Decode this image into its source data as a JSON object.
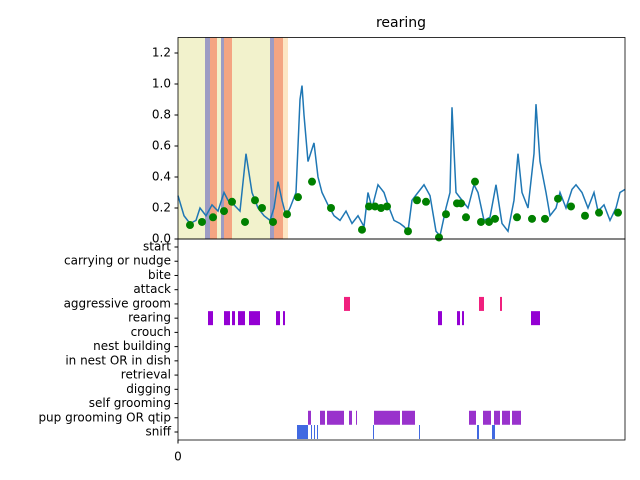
{
  "chart_data": [
    {
      "type": "line",
      "title": "rearing",
      "xlim": [
        0,
        447
      ],
      "ylim": [
        0,
        1.3
      ],
      "yticks": [
        {
          "value": 0,
          "label": "0.0"
        },
        {
          "value": 0.2,
          "label": "0.2"
        },
        {
          "value": 0.4,
          "label": "0.4"
        },
        {
          "value": 0.6,
          "label": "0.6"
        },
        {
          "value": 0.8,
          "label": "0.8"
        },
        {
          "value": 1.0,
          "label": "1.0"
        },
        {
          "value": 1.2,
          "label": "1.2"
        }
      ],
      "spans": [
        {
          "x": [
            0,
            27
          ],
          "color": "#f2f2cc"
        },
        {
          "x": [
            27,
            32
          ],
          "color": "#9d9cc4"
        },
        {
          "x": [
            32,
            39
          ],
          "color": "#f4a582"
        },
        {
          "x": [
            39,
            43
          ],
          "color": "#f2f2cc"
        },
        {
          "x": [
            43,
            46
          ],
          "color": "#9d9cc4"
        },
        {
          "x": [
            46,
            54
          ],
          "color": "#f4a582"
        },
        {
          "x": [
            54,
            92
          ],
          "color": "#f2f2cc"
        },
        {
          "x": [
            92,
            96
          ],
          "color": "#9d9cc4"
        },
        {
          "x": [
            96,
            105
          ],
          "color": "#f4a582"
        },
        {
          "x": [
            105,
            110
          ],
          "color": "#fde6c4"
        }
      ],
      "series": [
        {
          "type": "line",
          "color": "#1f77b4",
          "x": [
            0,
            6,
            12,
            18,
            22,
            28,
            34,
            40,
            46,
            50,
            56,
            62,
            68,
            74,
            80,
            86,
            92,
            96,
            100,
            104,
            108,
            112,
            118,
            122,
            124,
            126,
            130,
            136,
            140,
            144,
            150,
            156,
            162,
            168,
            174,
            180,
            186,
            190,
            194,
            200,
            206,
            210,
            216,
            222,
            226,
            230,
            234,
            240,
            246,
            252,
            258,
            262,
            268,
            272,
            274,
            278,
            284,
            290,
            296,
            300,
            306,
            312,
            318,
            324,
            330,
            336,
            340,
            344,
            350,
            356,
            358,
            362,
            368,
            372,
            378,
            382,
            388,
            394,
            398,
            404,
            410,
            416,
            420,
            426,
            432,
            438,
            442,
            447
          ],
          "values": [
            0.28,
            0.15,
            0.1,
            0.12,
            0.2,
            0.15,
            0.22,
            0.18,
            0.3,
            0.25,
            0.22,
            0.18,
            0.55,
            0.3,
            0.2,
            0.15,
            0.12,
            0.2,
            0.37,
            0.25,
            0.15,
            0.2,
            0.3,
            0.9,
            0.99,
            0.8,
            0.5,
            0.62,
            0.4,
            0.3,
            0.22,
            0.15,
            0.12,
            0.18,
            0.1,
            0.15,
            0.08,
            0.3,
            0.2,
            0.35,
            0.3,
            0.22,
            0.12,
            0.1,
            0.08,
            0.05,
            0.25,
            0.3,
            0.35,
            0.28,
            0.05,
            0.02,
            0.2,
            0.3,
            0.85,
            0.3,
            0.25,
            0.2,
            0.35,
            0.3,
            0.12,
            0.14,
            0.35,
            0.1,
            0.05,
            0.25,
            0.55,
            0.3,
            0.2,
            0.55,
            0.87,
            0.5,
            0.3,
            0.15,
            0.2,
            0.3,
            0.2,
            0.32,
            0.35,
            0.3,
            0.2,
            0.3,
            0.18,
            0.22,
            0.12,
            0.2,
            0.3,
            0.32
          ]
        },
        {
          "type": "scatter",
          "color": "#008000",
          "x": [
            12,
            24,
            35,
            46,
            54,
            67,
            77,
            84,
            95,
            109,
            120,
            134,
            153,
            184,
            191,
            197,
            203,
            209,
            230,
            239,
            248,
            261,
            268,
            279,
            283,
            288,
            297,
            303,
            311,
            317,
            339,
            354,
            367,
            380,
            393,
            407,
            421,
            440
          ],
          "values": [
            0.09,
            0.11,
            0.14,
            0.18,
            0.24,
            0.11,
            0.25,
            0.2,
            0.11,
            0.16,
            0.27,
            0.37,
            0.2,
            0.06,
            0.21,
            0.21,
            0.2,
            0.21,
            0.05,
            0.25,
            0.24,
            0.01,
            0.16,
            0.23,
            0.23,
            0.14,
            0.37,
            0.11,
            0.11,
            0.13,
            0.14,
            0.13,
            0.13,
            0.26,
            0.21,
            0.15,
            0.17,
            0.17
          ]
        }
      ]
    },
    {
      "type": "ethogram",
      "xlim": [
        0,
        447
      ],
      "xticks": [
        0
      ],
      "rows": [
        {
          "name": "start",
          "intervals": []
        },
        {
          "name": "carrying or nudge",
          "intervals": []
        },
        {
          "name": "bite",
          "intervals": []
        },
        {
          "name": "attack",
          "intervals": []
        },
        {
          "name": "aggressive groom",
          "color": "#f0207e",
          "intervals": [
            [
              166,
              172
            ],
            [
              301,
              306
            ],
            [
              322,
              324
            ]
          ]
        },
        {
          "name": "rearing",
          "color": "#9400d3",
          "intervals": [
            [
              30,
              35
            ],
            [
              46,
              52
            ],
            [
              54,
              57
            ],
            [
              60,
              67
            ],
            [
              71,
              82
            ],
            [
              98,
              102
            ],
            [
              105,
              107
            ],
            [
              260,
              264
            ],
            [
              279,
              282
            ],
            [
              284,
              286
            ],
            [
              353,
              362
            ]
          ]
        },
        {
          "name": "crouch",
          "intervals": []
        },
        {
          "name": "nest building",
          "intervals": []
        },
        {
          "name": "in nest OR in dish",
          "intervals": []
        },
        {
          "name": "retrieval",
          "intervals": []
        },
        {
          "name": "digging",
          "intervals": []
        },
        {
          "name": "self grooming",
          "intervals": []
        },
        {
          "name": "pup grooming OR qtip",
          "color": "#9932cc",
          "intervals": [
            [
              130,
              133
            ],
            [
              142,
              147
            ],
            [
              149,
              166
            ],
            [
              171,
              174
            ],
            [
              178,
              179
            ],
            [
              196,
              222
            ],
            [
              224,
              237
            ],
            [
              291,
              298
            ],
            [
              305,
              313
            ],
            [
              316,
              322
            ],
            [
              324,
              332
            ],
            [
              334,
              343
            ]
          ]
        },
        {
          "name": "sniff",
          "color": "#4169e1",
          "intervals": [
            [
              119,
              130
            ],
            [
              133,
              134
            ],
            [
              136,
              137
            ],
            [
              139,
              140
            ],
            [
              195,
              196
            ],
            [
              241,
              242
            ],
            [
              299,
              301
            ],
            [
              314,
              317
            ]
          ]
        }
      ]
    }
  ]
}
